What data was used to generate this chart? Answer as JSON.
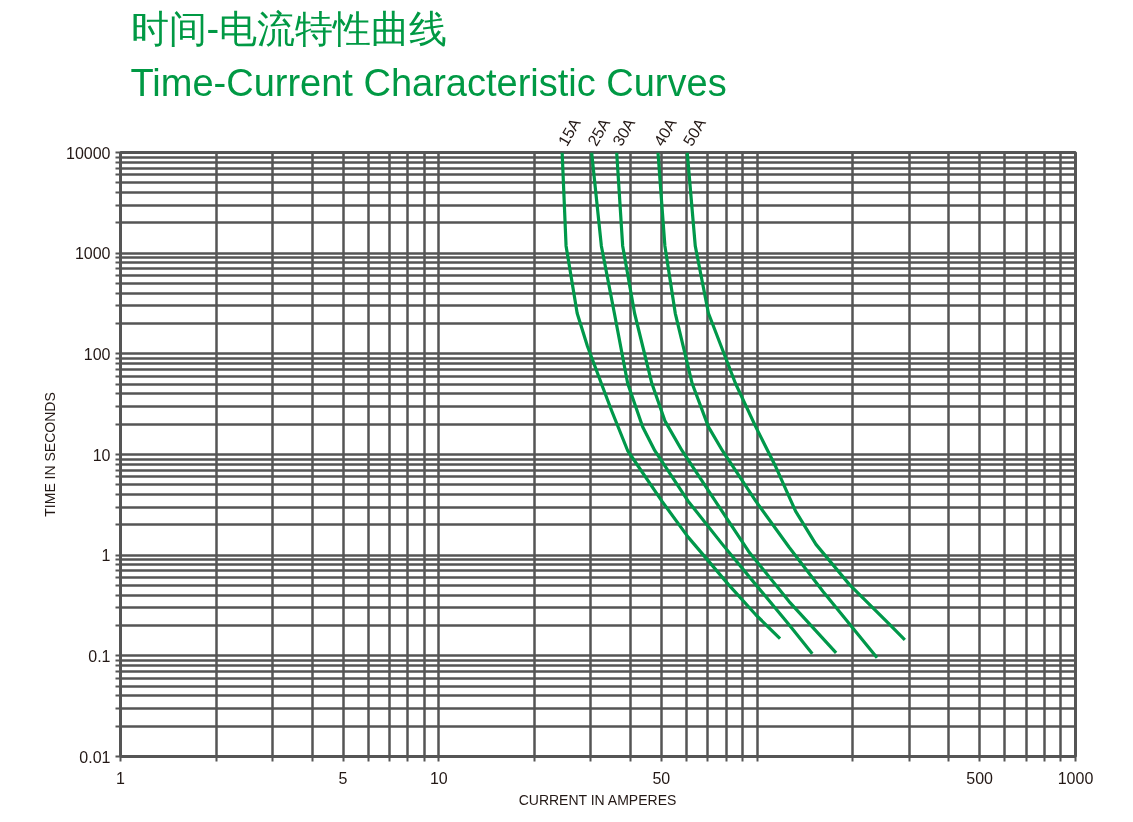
{
  "chart_data": {
    "type": "line",
    "title": "时间-电流特性曲线",
    "subtitle": "Time-Current Characteristic Curves",
    "xlabel": "CURRENT IN AMPERES",
    "ylabel": "TIME IN SECONDS",
    "log": "xy",
    "grid": true,
    "marker": "none",
    "line_style": "solid",
    "xlim": [
      1,
      1000
    ],
    "ylim": [
      0.01,
      10000
    ],
    "xticks": [
      1,
      {
        "value": 2,
        "label": null
      },
      {
        "value": 3,
        "label": null
      },
      {
        "value": 4,
        "label": null
      },
      5,
      {
        "value": 6,
        "label": null
      },
      {
        "value": 7,
        "label": null
      },
      {
        "value": 8,
        "label": null
      },
      {
        "value": 9,
        "label": null
      },
      10,
      {
        "value": 20,
        "label": null
      },
      {
        "value": 30,
        "label": null
      },
      {
        "value": 40,
        "label": null
      },
      50,
      {
        "value": 60,
        "label": null
      },
      {
        "value": 70,
        "label": null
      },
      {
        "value": 80,
        "label": null
      },
      {
        "value": 90,
        "label": null
      },
      {
        "value": 100,
        "label": null
      },
      {
        "value": 200,
        "label": null
      },
      {
        "value": 300,
        "label": null
      },
      {
        "value": 400,
        "label": null
      },
      500,
      {
        "value": 600,
        "label": null
      },
      {
        "value": 700,
        "label": null
      },
      {
        "value": 800,
        "label": null
      },
      {
        "value": 900,
        "label": null
      },
      1000
    ],
    "yticks": [
      0.01,
      {
        "value": 0.02,
        "label": null
      },
      {
        "value": 0.03,
        "label": null
      },
      {
        "value": 0.04,
        "label": null
      },
      {
        "value": 0.05,
        "label": null
      },
      {
        "value": 0.06,
        "label": null
      },
      {
        "value": 0.07,
        "label": null
      },
      {
        "value": 0.08,
        "label": null
      },
      {
        "value": 0.09,
        "label": null
      },
      0.1,
      {
        "value": 0.2,
        "label": null
      },
      {
        "value": 0.3,
        "label": null
      },
      {
        "value": 0.4,
        "label": null
      },
      {
        "value": 0.5,
        "label": null
      },
      {
        "value": 0.6,
        "label": null
      },
      {
        "value": 0.7,
        "label": null
      },
      {
        "value": 0.8,
        "label": null
      },
      {
        "value": 0.9,
        "label": null
      },
      1,
      {
        "value": 2,
        "label": null
      },
      {
        "value": 3,
        "label": null
      },
      {
        "value": 4,
        "label": null
      },
      {
        "value": 5,
        "label": null
      },
      {
        "value": 6,
        "label": null
      },
      {
        "value": 7,
        "label": null
      },
      {
        "value": 8,
        "label": null
      },
      {
        "value": 9,
        "label": null
      },
      10,
      {
        "value": 20,
        "label": null
      },
      {
        "value": 30,
        "label": null
      },
      {
        "value": 40,
        "label": null
      },
      {
        "value": 50,
        "label": null
      },
      {
        "value": 60,
        "label": null
      },
      {
        "value": 70,
        "label": null
      },
      {
        "value": 80,
        "label": null
      },
      {
        "value": 90,
        "label": null
      },
      100,
      {
        "value": 200,
        "label": null
      },
      {
        "value": 300,
        "label": null
      },
      {
        "value": 400,
        "label": null
      },
      {
        "value": 500,
        "label": null
      },
      {
        "value": 600,
        "label": null
      },
      {
        "value": 700,
        "label": null
      },
      {
        "value": 800,
        "label": null
      },
      {
        "value": 900,
        "label": null
      },
      1000,
      {
        "value": 2000,
        "label": null
      },
      {
        "value": 3000,
        "label": null
      },
      {
        "value": 4000,
        "label": null
      },
      {
        "value": 5000,
        "label": null
      },
      {
        "value": 6000,
        "label": null
      },
      {
        "value": 7000,
        "label": null
      },
      {
        "value": 8000,
        "label": null
      },
      {
        "value": 9000,
        "label": null
      },
      10000
    ],
    "series": [
      {
        "name": "15A",
        "color": "#00984a",
        "x": [
          24.4,
          25.1,
          27.2,
          29.3,
          32.4,
          34.9,
          39.2,
          50.2,
          60.7,
          81.3,
          99,
          118
        ],
        "values": [
          10000,
          1180,
          253,
          119,
          50.7,
          27.2,
          10.9,
          3.44,
          1.51,
          0.51,
          0.256,
          0.148
        ]
      },
      {
        "name": "25A",
        "color": "#00984a",
        "x": [
          30.2,
          32.4,
          35.6,
          39.2,
          43.7,
          47.7,
          60.7,
          77.8,
          99,
          126,
          149
        ],
        "values": [
          10000,
          1180,
          253,
          50.7,
          18.8,
          10.9,
          3.44,
          1.28,
          0.51,
          0.204,
          0.105
        ]
      },
      {
        "name": "30A",
        "color": "#00984a",
        "x": [
          36.2,
          37.8,
          41.2,
          46.7,
          51.3,
          58.1,
          73.9,
          94,
          126,
          177
        ],
        "values": [
          10000,
          1180,
          253,
          50.7,
          21.6,
          10.9,
          3.44,
          1.09,
          0.346,
          0.107
        ]
      },
      {
        "name": "40A",
        "color": "#00984a",
        "x": [
          48.8,
          51.3,
          55.3,
          62.5,
          70.3,
          77.8,
          99,
          126,
          161,
          238
        ],
        "values": [
          10000,
          1180,
          253,
          50.7,
          18.8,
          10.9,
          3.44,
          1.2,
          0.435,
          0.0955
        ]
      },
      {
        "name": "50A",
        "color": "#00984a",
        "x": [
          60.3,
          63.9,
          70.3,
          85.5,
          99,
          114.5,
          132,
          153,
          195,
          261,
          291
        ],
        "values": [
          10000,
          1180,
          253,
          50.7,
          18.8,
          7.5,
          2.74,
          1.28,
          0.51,
          0.204,
          0.144
        ]
      }
    ]
  }
}
